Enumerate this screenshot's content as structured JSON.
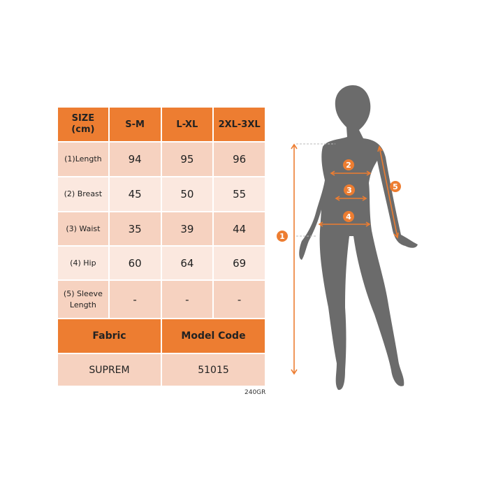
{
  "colors": {
    "accent": "#ED7D31",
    "silhouette": "#6b6b6b"
  },
  "table": {
    "header": {
      "size_label_1": "SIZE",
      "size_label_2": "(cm)",
      "columns": [
        "S-M",
        "L-XL",
        "2XL-3XL"
      ]
    },
    "rows": [
      {
        "label": "(1)Length",
        "values": [
          "94",
          "95",
          "96"
        ]
      },
      {
        "label": "(2) Breast",
        "values": [
          "45",
          "50",
          "55"
        ]
      },
      {
        "label": "(3) Waist",
        "values": [
          "35",
          "39",
          "44"
        ]
      },
      {
        "label": "(4) Hip",
        "values": [
          "60",
          "64",
          "69"
        ]
      },
      {
        "label_1": "(5) Sleeve",
        "label_2": "Length",
        "values": [
          "-",
          "-",
          "-"
        ]
      }
    ],
    "fabric_label": "Fabric",
    "model_code_label": "Model Code",
    "fabric_value": "SUPREM",
    "model_code_value": "51015"
  },
  "weight_note": "240GR",
  "diagram": {
    "markers": [
      "1",
      "2",
      "3",
      "4",
      "5"
    ]
  }
}
